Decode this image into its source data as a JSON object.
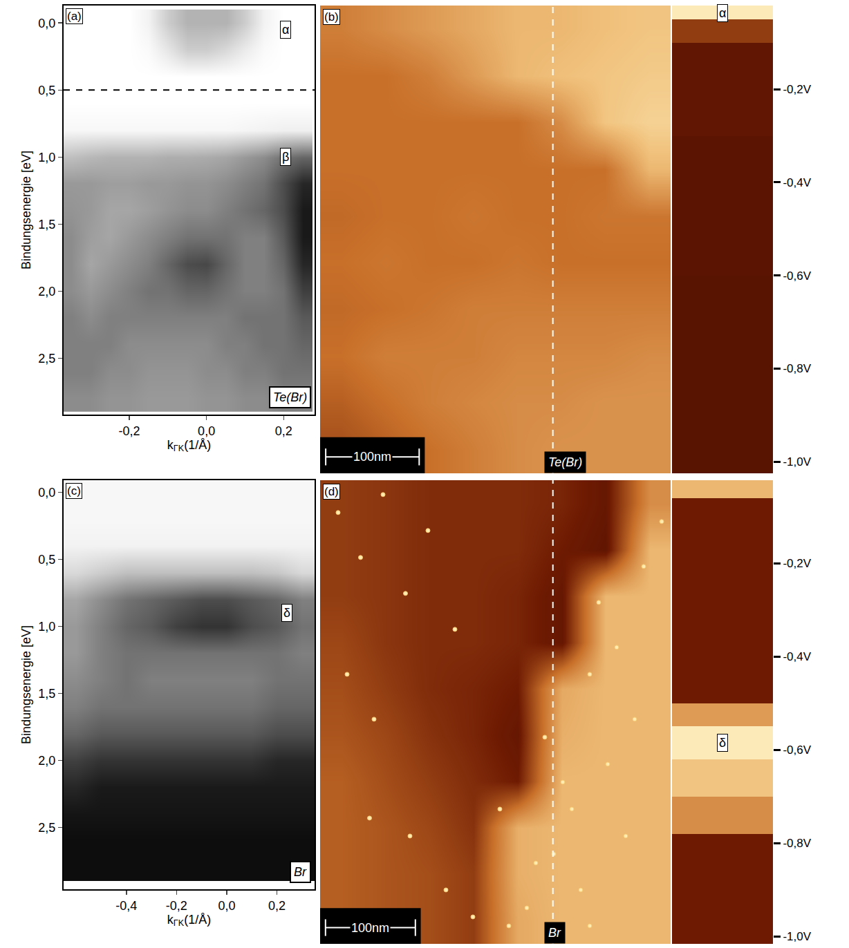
{
  "chart_data": [
    {
      "type": "heatmap",
      "panel_label": "(a)",
      "label": "Te(Br)",
      "color": "greys",
      "x_title": {
        "text": "k",
        "sub": "ΓK",
        "unit": "(1/Å)"
      },
      "y_title": "Bindungsenergie [eV]",
      "xlim": [
        -0.37,
        0.28
      ],
      "ylim": [
        2.92,
        -0.13
      ],
      "xticks": [
        {
          "value": -0.2,
          "label": "-0,2"
        },
        {
          "value": 0,
          "label": "0,0"
        },
        {
          "value": 0.2,
          "label": "0,2"
        }
      ],
      "yticks": [
        {
          "value": 0,
          "label": "0,0"
        },
        {
          "value": 0.5,
          "label": "0,5"
        },
        {
          "value": 1,
          "label": "1,0"
        },
        {
          "value": 1.5,
          "label": "1,5"
        },
        {
          "value": 2,
          "label": "2,0"
        },
        {
          "value": 2.5,
          "label": "2,5"
        }
      ],
      "grid": false,
      "zlim": [
        0,
        1
      ],
      "x": [
        -0.35,
        -0.3,
        -0.25,
        -0.2,
        -0.15,
        -0.1,
        -0.05,
        0,
        0.05,
        0.1,
        0.15,
        0.2,
        0.25
      ],
      "y": [
        0,
        0.2,
        0.4,
        0.6,
        0.8,
        1.0,
        1.2,
        1.4,
        1.6,
        1.8,
        2.0,
        2.2,
        2.4,
        2.6,
        2.8
      ],
      "z": [
        [
          0,
          0,
          0,
          0,
          0.05,
          0.2,
          0.3,
          0.3,
          0.3,
          0.2,
          0.05,
          0,
          0
        ],
        [
          0,
          0,
          0,
          0,
          0.02,
          0.1,
          0.2,
          0.2,
          0.15,
          0.08,
          0.02,
          0,
          0
        ],
        [
          0,
          0,
          0,
          0,
          0,
          0,
          0,
          0,
          0,
          0,
          0,
          0,
          0
        ],
        [
          0,
          0,
          0,
          0,
          0,
          0,
          0,
          0,
          0,
          0,
          0,
          0,
          0
        ],
        [
          0.03,
          0.03,
          0.03,
          0.03,
          0.03,
          0.03,
          0.03,
          0.03,
          0.03,
          0.04,
          0.05,
          0.06,
          0.06
        ],
        [
          0.25,
          0.28,
          0.3,
          0.3,
          0.3,
          0.32,
          0.32,
          0.33,
          0.35,
          0.4,
          0.45,
          0.55,
          0.6
        ],
        [
          0.4,
          0.4,
          0.38,
          0.38,
          0.4,
          0.4,
          0.42,
          0.42,
          0.45,
          0.5,
          0.55,
          0.7,
          0.85
        ],
        [
          0.42,
          0.4,
          0.35,
          0.35,
          0.38,
          0.42,
          0.45,
          0.45,
          0.5,
          0.55,
          0.6,
          0.7,
          0.9
        ],
        [
          0.45,
          0.38,
          0.35,
          0.4,
          0.45,
          0.5,
          0.55,
          0.55,
          0.55,
          0.5,
          0.5,
          0.65,
          0.9
        ],
        [
          0.45,
          0.35,
          0.4,
          0.45,
          0.5,
          0.6,
          0.7,
          0.72,
          0.6,
          0.5,
          0.5,
          0.6,
          0.85
        ],
        [
          0.45,
          0.4,
          0.45,
          0.5,
          0.55,
          0.55,
          0.6,
          0.6,
          0.55,
          0.5,
          0.5,
          0.55,
          0.75
        ],
        [
          0.5,
          0.45,
          0.5,
          0.5,
          0.5,
          0.5,
          0.5,
          0.5,
          0.5,
          0.55,
          0.55,
          0.55,
          0.65
        ],
        [
          0.5,
          0.5,
          0.5,
          0.45,
          0.45,
          0.45,
          0.45,
          0.45,
          0.5,
          0.5,
          0.55,
          0.55,
          0.6
        ],
        [
          0.5,
          0.5,
          0.45,
          0.45,
          0.42,
          0.42,
          0.42,
          0.45,
          0.45,
          0.5,
          0.5,
          0.55,
          0.55
        ],
        [
          0.45,
          0.45,
          0.42,
          0.42,
          0.4,
          0.4,
          0.4,
          0.42,
          0.42,
          0.45,
          0.45,
          0.5,
          0.5
        ]
      ],
      "dashed_line_y": 0.5,
      "annotations": [
        {
          "text": "α",
          "x": 0.205,
          "y": 0.05
        },
        {
          "text": "β",
          "x": 0.205,
          "y": 1.0
        }
      ]
    },
    {
      "type": "heatmap",
      "panel_label": "(b)",
      "label": "Te(Br)",
      "color": "afmhot",
      "xlim": [
        0,
        375
      ],
      "ylim": [
        0,
        500
      ],
      "tick_labels": false,
      "grid": false,
      "zlim": [
        0,
        1
      ],
      "x": [
        23,
        70,
        117,
        164,
        211,
        258,
        305,
        352
      ],
      "y": [
        25,
        75,
        125,
        175,
        225,
        275,
        325,
        375,
        425,
        475
      ],
      "z": [
        [
          0.4,
          0.45,
          0.5,
          0.55,
          0.6,
          0.62,
          0.62,
          0.62
        ],
        [
          0.45,
          0.5,
          0.55,
          0.58,
          0.6,
          0.6,
          0.62,
          0.62
        ],
        [
          0.5,
          0.55,
          0.55,
          0.55,
          0.58,
          0.58,
          0.58,
          0.6
        ],
        [
          0.48,
          0.5,
          0.52,
          0.55,
          0.55,
          0.55,
          0.55,
          0.55
        ],
        [
          0.5,
          0.52,
          0.5,
          0.5,
          0.52,
          0.5,
          0.5,
          0.5
        ],
        [
          0.48,
          0.5,
          0.5,
          0.52,
          0.5,
          0.5,
          0.52,
          0.52
        ],
        [
          0.5,
          0.5,
          0.5,
          0.5,
          0.5,
          0.5,
          0.5,
          0.75
        ],
        [
          0.5,
          0.5,
          0.5,
          0.5,
          0.5,
          0.6,
          0.8,
          0.85
        ],
        [
          0.5,
          0.5,
          0.55,
          0.65,
          0.75,
          0.78,
          0.8,
          0.82
        ],
        [
          0.55,
          0.6,
          0.65,
          0.7,
          0.75,
          0.75,
          0.78,
          0.8
        ]
      ],
      "scale_bar": {
        "length": 100,
        "label": "100nm"
      },
      "dashed_line_x": 249,
      "spectrum_strip": {
        "xlim": [
          0,
          1
        ],
        "ylim": [
          -1.025,
          -0.02
        ],
        "yticks": [
          {
            "value": -0.2,
            "label": "-0,2V"
          },
          {
            "value": -0.4,
            "label": "-0,4V"
          },
          {
            "value": -0.6,
            "label": "-0,6V"
          },
          {
            "value": -0.8,
            "label": "-0,8V"
          },
          {
            "value": -1.0,
            "label": "-1,0V"
          }
        ],
        "x": [
          0,
          1
        ],
        "y": [
          -1.025,
          -0.6,
          -0.3,
          -0.1,
          -0.05,
          -0.02
        ],
        "z": [
          [
            0.17
          ],
          [
            0.18
          ],
          [
            0.2
          ],
          [
            0.35
          ],
          [
            0.95
          ]
        ],
        "annotations": [
          {
            "text": "α",
            "x": 0.5,
            "y": -0.037
          }
        ]
      }
    },
    {
      "type": "heatmap",
      "panel_label": "(c)",
      "label": "Br",
      "color": "greys",
      "x_title": {
        "text": "k",
        "sub": "ΓK",
        "unit": "(1/Å)"
      },
      "y_title": "Bindungsenergie [eV]",
      "xlim": [
        -0.65,
        0.35
      ],
      "ylim": [
        2.96,
        -0.09
      ],
      "xticks": [
        {
          "value": -0.4,
          "label": "-0,4"
        },
        {
          "value": -0.2,
          "label": "-0,2"
        },
        {
          "value": 0,
          "label": "0,0"
        },
        {
          "value": 0.2,
          "label": "0,2"
        }
      ],
      "yticks": [
        {
          "value": 0,
          "label": "0,0"
        },
        {
          "value": 0.5,
          "label": "0,5"
        },
        {
          "value": 1,
          "label": "1,0"
        },
        {
          "value": 1.5,
          "label": "1,5"
        },
        {
          "value": 2,
          "label": "2,0"
        },
        {
          "value": 2.5,
          "label": "2,5"
        }
      ],
      "grid": false,
      "zlim": [
        0,
        1
      ],
      "x": [
        -0.6,
        -0.5,
        -0.4,
        -0.3,
        -0.2,
        -0.1,
        0,
        0.1,
        0.2,
        0.3
      ],
      "y": [
        0,
        0.2,
        0.4,
        0.6,
        0.8,
        1.0,
        1.2,
        1.4,
        1.6,
        1.8,
        2.0,
        2.2,
        2.4,
        2.6,
        2.8
      ],
      "z": [
        [
          0.03,
          0.03,
          0.03,
          0.03,
          0.03,
          0.03,
          0.03,
          0.03,
          0.03,
          0.03
        ],
        [
          0.03,
          0.03,
          0.03,
          0.03,
          0.03,
          0.03,
          0.03,
          0.03,
          0.03,
          0.03
        ],
        [
          0.05,
          0.05,
          0.05,
          0.05,
          0.05,
          0.05,
          0.05,
          0.05,
          0.05,
          0.05
        ],
        [
          0.15,
          0.2,
          0.25,
          0.25,
          0.25,
          0.25,
          0.25,
          0.25,
          0.22,
          0.15
        ],
        [
          0.35,
          0.45,
          0.55,
          0.6,
          0.65,
          0.7,
          0.7,
          0.65,
          0.6,
          0.5
        ],
        [
          0.4,
          0.5,
          0.6,
          0.65,
          0.75,
          0.8,
          0.8,
          0.7,
          0.65,
          0.55
        ],
        [
          0.4,
          0.5,
          0.55,
          0.55,
          0.55,
          0.55,
          0.55,
          0.55,
          0.55,
          0.5
        ],
        [
          0.45,
          0.5,
          0.55,
          0.5,
          0.5,
          0.5,
          0.5,
          0.5,
          0.55,
          0.55
        ],
        [
          0.5,
          0.55,
          0.55,
          0.55,
          0.55,
          0.55,
          0.55,
          0.55,
          0.6,
          0.6
        ],
        [
          0.6,
          0.65,
          0.65,
          0.65,
          0.65,
          0.65,
          0.65,
          0.65,
          0.7,
          0.7
        ],
        [
          0.75,
          0.8,
          0.8,
          0.8,
          0.8,
          0.8,
          0.8,
          0.8,
          0.85,
          0.85
        ],
        [
          0.85,
          0.9,
          0.9,
          0.9,
          0.9,
          0.9,
          0.9,
          0.9,
          0.9,
          0.9
        ],
        [
          0.92,
          0.92,
          0.92,
          0.92,
          0.92,
          0.92,
          0.92,
          0.92,
          0.92,
          0.92
        ],
        [
          0.95,
          0.95,
          0.95,
          0.95,
          0.95,
          0.95,
          0.95,
          0.95,
          0.95,
          0.95
        ],
        [
          0.95,
          0.95,
          0.95,
          0.95,
          0.95,
          0.95,
          0.95,
          0.95,
          0.95,
          0.95
        ]
      ],
      "annotations": [
        {
          "text": "δ",
          "x": 0.24,
          "y": 0.9
        }
      ]
    },
    {
      "type": "heatmap",
      "panel_label": "(d)",
      "label": "Br",
      "color": "afmhot",
      "xlim": [
        0,
        390
      ],
      "ylim": [
        0,
        516
      ],
      "tick_labels": false,
      "grid": false,
      "zlim": [
        0,
        1
      ],
      "x": [
        24,
        73,
        122,
        171,
        220,
        269,
        318,
        367
      ],
      "y": [
        26,
        78,
        129,
        181,
        232,
        284,
        335,
        387,
        438,
        490
      ],
      "z": [
        [
          0.45,
          0.42,
          0.4,
          0.35,
          0.7,
          0.75,
          0.75,
          0.75
        ],
        [
          0.45,
          0.42,
          0.4,
          0.35,
          0.72,
          0.75,
          0.75,
          0.75
        ],
        [
          0.45,
          0.42,
          0.38,
          0.32,
          0.72,
          0.75,
          0.75,
          0.75
        ],
        [
          0.45,
          0.4,
          0.35,
          0.3,
          0.25,
          0.75,
          0.75,
          0.75
        ],
        [
          0.42,
          0.38,
          0.32,
          0.28,
          0.22,
          0.72,
          0.75,
          0.75
        ],
        [
          0.4,
          0.35,
          0.3,
          0.28,
          0.25,
          0.7,
          0.75,
          0.75
        ],
        [
          0.38,
          0.33,
          0.3,
          0.3,
          0.28,
          0.22,
          0.75,
          0.75
        ],
        [
          0.35,
          0.33,
          0.3,
          0.3,
          0.28,
          0.22,
          0.75,
          0.75
        ],
        [
          0.35,
          0.33,
          0.3,
          0.3,
          0.3,
          0.25,
          0.2,
          0.75
        ],
        [
          0.35,
          0.33,
          0.3,
          0.3,
          0.3,
          0.28,
          0.22,
          0.6
        ]
      ],
      "particles": {
        "marker": "circle",
        "x": [
          20,
          45,
          70,
          95,
          120,
          30,
          60,
          150,
          200,
          260,
          290,
          320,
          350,
          230,
          270,
          300,
          340,
          210,
          250,
          280,
          310,
          360,
          240,
          330,
          100,
          140,
          55,
          170,
          380,
          300
        ],
        "y": [
          480,
          430,
          500,
          390,
          460,
          300,
          250,
          350,
          150,
          100,
          60,
          200,
          250,
          40,
          180,
          300,
          120,
          20,
          230,
          150,
          380,
          420,
          90,
          330,
          120,
          60,
          140,
          30,
          470,
          20
        ]
      },
      "scale_bar": {
        "length": 100,
        "label": "100nm"
      },
      "dashed_line_x": 259,
      "spectrum_strip": {
        "xlim": [
          0,
          1
        ],
        "ylim": [
          -1.016,
          -0.022
        ],
        "yticks": [
          {
            "value": -0.2,
            "label": "-0,2V"
          },
          {
            "value": -0.4,
            "label": "-0,4V"
          },
          {
            "value": -0.6,
            "label": "-0,6V"
          },
          {
            "value": -0.8,
            "label": "-0,8V"
          },
          {
            "value": -1.0,
            "label": "-1,0V"
          }
        ],
        "x": [
          0,
          1
        ],
        "y": [
          -1.016,
          -0.78,
          -0.7,
          -0.62,
          -0.55,
          -0.5,
          -0.06,
          -0.022
        ],
        "z": [
          [
            0.25
          ],
          [
            0.6
          ],
          [
            0.8
          ],
          [
            0.95
          ],
          [
            0.65
          ],
          [
            0.25
          ],
          [
            0.75
          ]
        ],
        "annotations": [
          {
            "text": "δ",
            "x": 0.5,
            "y": -0.585
          }
        ]
      }
    }
  ]
}
